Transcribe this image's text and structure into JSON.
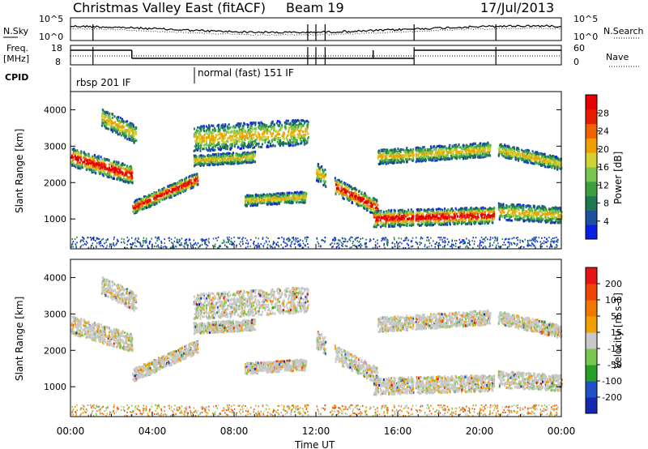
{
  "header": {
    "title": "Christmas Valley East (fitACF)",
    "beam": "Beam 19",
    "date": "17/Jul/2013"
  },
  "chart_data": [
    {
      "type": "line",
      "panel": "noise",
      "left_label": "N.Sky",
      "right_label": "N.Search",
      "left_ticks": [
        "10^5",
        "10^0"
      ],
      "right_ticks": [
        "10^5",
        "10^0"
      ]
    },
    {
      "type": "line",
      "panel": "frequency",
      "left_label": [
        "Freq.",
        "[MHz]"
      ],
      "left_ticks": [
        "18",
        "8"
      ],
      "right_label": "Nave",
      "right_ticks": [
        "60",
        "0"
      ]
    },
    {
      "type": "annotation",
      "panel": "cpid",
      "label": "CPID",
      "segments": [
        {
          "start_hour": 0,
          "end_hour": 6,
          "text": "rbsp 201 IF"
        },
        {
          "start_hour": 6,
          "end_hour": 24,
          "text": "normal (fast) 151 IF"
        }
      ]
    },
    {
      "type": "heatmap",
      "panel": "power",
      "ylabel": "Slant Range [km]",
      "yticks": [
        1000,
        2000,
        3000,
        4000
      ],
      "ylim": [
        180,
        4500
      ],
      "xlim": [
        0,
        24
      ],
      "colorbar": {
        "label": "Power [dB]",
        "ticks": [
          "4",
          "8",
          "12",
          "16",
          "20",
          "24",
          "28"
        ],
        "colors": [
          "#0a1ee6",
          "#1e50a0",
          "#1e7850",
          "#3ca040",
          "#78c850",
          "#d2d232",
          "#f0a000",
          "#f06400",
          "#e61e00",
          "#e60000"
        ]
      }
    },
    {
      "type": "heatmap",
      "panel": "velocity",
      "ylabel": "Slant Range [km]",
      "yticks": [
        1000,
        2000,
        3000,
        4000
      ],
      "ylim": [
        180,
        4500
      ],
      "xlim": [
        0,
        24
      ],
      "xticks": [
        "00:00",
        "04:00",
        "08:00",
        "12:00",
        "16:00",
        "20:00",
        "00:00"
      ],
      "xlabel": "Time UT",
      "colorbar": {
        "label": "Velocity [m s-1]",
        "ticks": [
          "200",
          "100",
          "50",
          "15",
          "-15",
          "-50",
          "-100",
          "-200"
        ],
        "colors": [
          "#1428b4",
          "#1e50c8",
          "#28a028",
          "#78c850",
          "#c8c8c8",
          "#f0a000",
          "#f07800",
          "#f04600",
          "#e61414"
        ]
      }
    }
  ]
}
